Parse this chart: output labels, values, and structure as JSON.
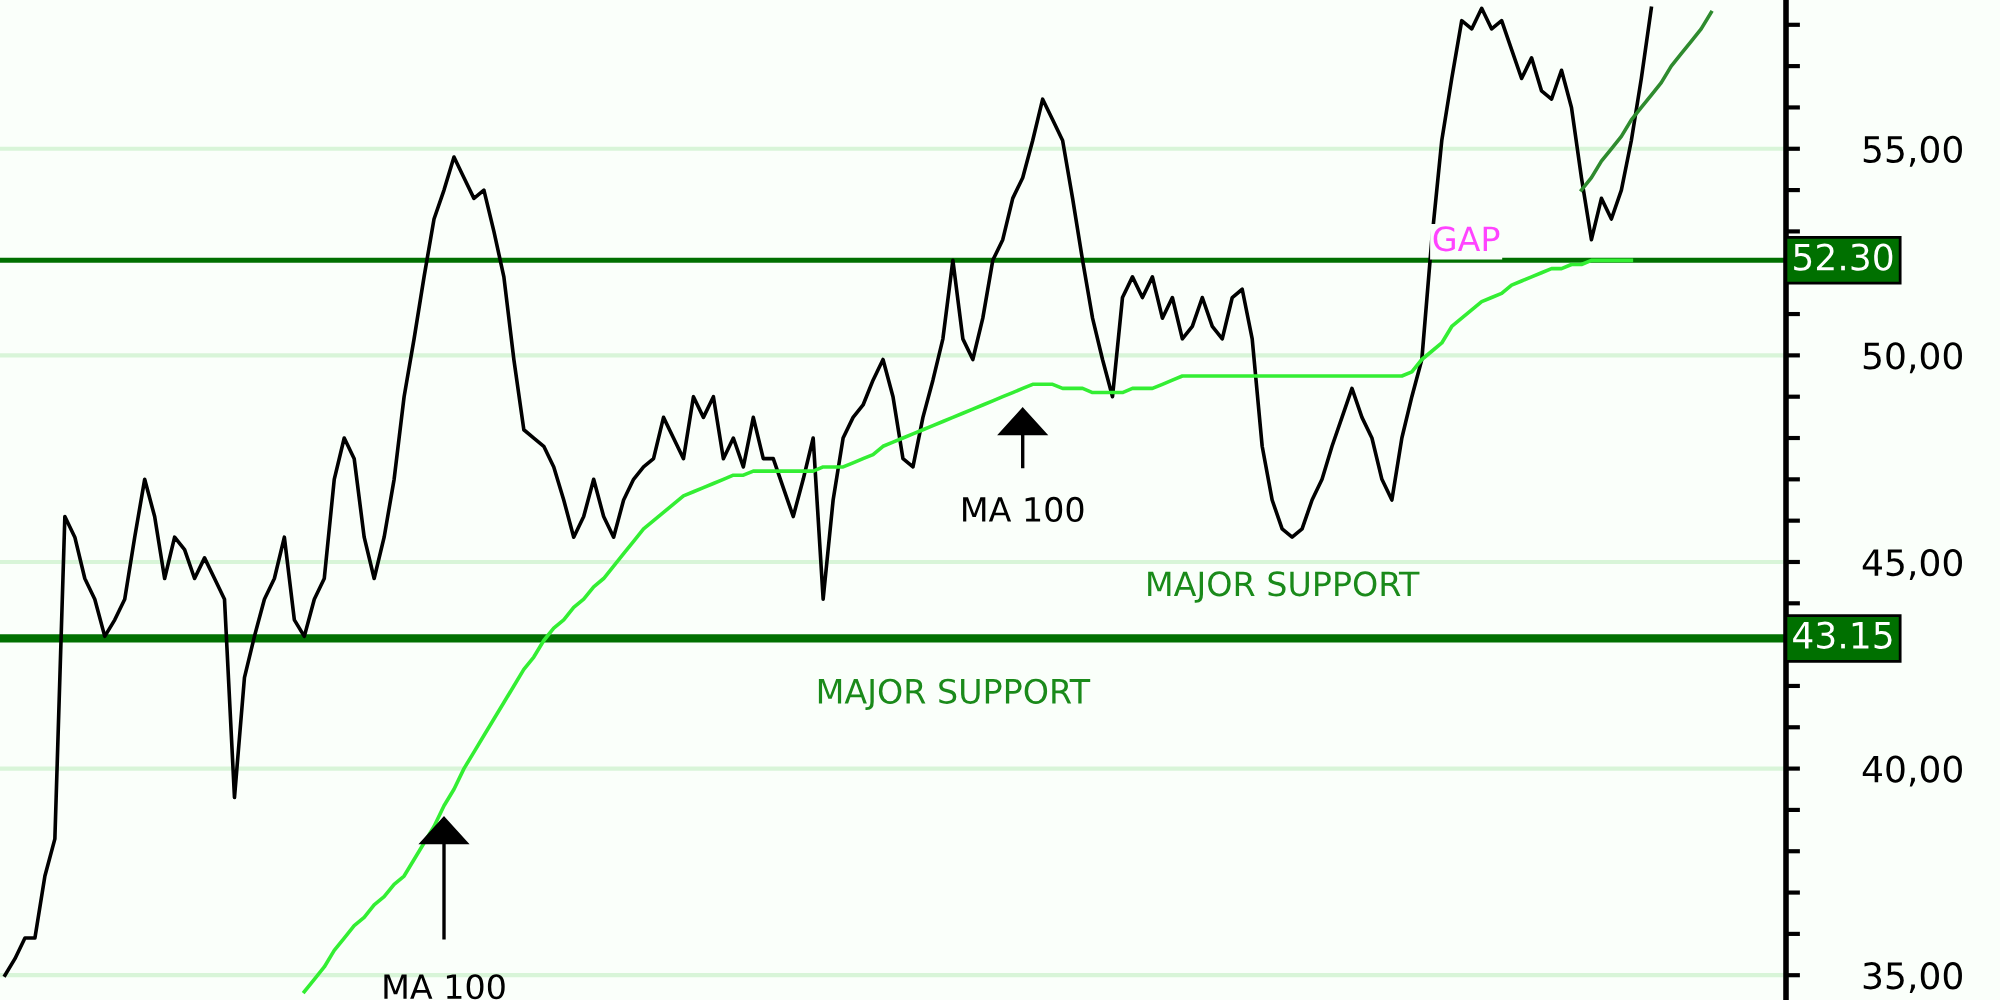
{
  "chart_data": {
    "type": "line",
    "categories": [
      null,
      null,
      null,
      null,
      null,
      null,
      null,
      null,
      null,
      null,
      null,
      null,
      null,
      null,
      null,
      null,
      null,
      null,
      null,
      null,
      null,
      null,
      null,
      null,
      null,
      null,
      null,
      null,
      null,
      null,
      null,
      null,
      null,
      null,
      null,
      null,
      null,
      null,
      null,
      null,
      null,
      null,
      null,
      null,
      null,
      null,
      null,
      null,
      null,
      null,
      null,
      null,
      null,
      null,
      null,
      null,
      null,
      null,
      null,
      null,
      null,
      null,
      null,
      null,
      null,
      null,
      null,
      null,
      null,
      null,
      null,
      null,
      null,
      null,
      null,
      null,
      null,
      null,
      null,
      null,
      null,
      null,
      null,
      null,
      null,
      null,
      null,
      null,
      null,
      null,
      null,
      null,
      null,
      null,
      null,
      null,
      null,
      null,
      null,
      null,
      null,
      null,
      null,
      null,
      null,
      null,
      null,
      null,
      null,
      null,
      null,
      null,
      null,
      null,
      null,
      null,
      null,
      null,
      null,
      null,
      null,
      null,
      null,
      null,
      null,
      null,
      null,
      null,
      null,
      null,
      null,
      null,
      null,
      null,
      null,
      null,
      null,
      null,
      null,
      null,
      null,
      null,
      null,
      null,
      null,
      null,
      null,
      null,
      null,
      null,
      null,
      null,
      null,
      null,
      null,
      null,
      null,
      null,
      null,
      null,
      null,
      null,
      null,
      null,
      null,
      null,
      null,
      null,
      null,
      null,
      null,
      null,
      null,
      null,
      null,
      null,
      null,
      null,
      null
    ],
    "series": [
      {
        "color": "#000000",
        "values": [
          35.0,
          35.4,
          35.9,
          35.9,
          37.4,
          38.3,
          46.1,
          45.6,
          44.6,
          44.1,
          43.2,
          43.6,
          44.1,
          45.6,
          47.0,
          46.1,
          44.6,
          45.6,
          45.3,
          44.6,
          45.1,
          44.6,
          44.1,
          39.3,
          42.2,
          43.2,
          44.1,
          44.6,
          45.6,
          43.6,
          43.2,
          44.1,
          44.6,
          47.0,
          48.0,
          47.5,
          45.6,
          44.6,
          45.6,
          47.0,
          49.0,
          50.4,
          51.9,
          53.3,
          54.0,
          54.8,
          54.3,
          53.8,
          54.0,
          53.0,
          51.9,
          49.9,
          48.2,
          48.0,
          47.8,
          47.3,
          46.5,
          45.6,
          46.1,
          47.0,
          46.1,
          45.6,
          46.5,
          47.0,
          47.3,
          47.5,
          48.5,
          48.0,
          47.5,
          49.0,
          48.5,
          49.0,
          47.5,
          48.0,
          47.3,
          48.5,
          47.5,
          47.5,
          46.8,
          46.1,
          47.0,
          48.0,
          44.1,
          46.5,
          48.0,
          48.5,
          48.8,
          49.4,
          49.9,
          49.0,
          47.5,
          47.3,
          48.5,
          49.4,
          50.4,
          52.3,
          50.4,
          49.9,
          50.9,
          52.3,
          52.8,
          53.8,
          54.3,
          55.2,
          56.2,
          55.7,
          55.2,
          53.8,
          52.3,
          50.9,
          49.9,
          49.0,
          51.4,
          51.9,
          51.4,
          51.9,
          50.9,
          51.4,
          50.4,
          50.7,
          51.4,
          50.7,
          50.4,
          51.4,
          51.6,
          50.4,
          47.8,
          46.5,
          45.8,
          45.6,
          45.8,
          46.5,
          47.0,
          47.8,
          48.5,
          49.2,
          48.5,
          48.0,
          47.0,
          46.5,
          48.0,
          49.0,
          49.9,
          52.8,
          55.2,
          56.7,
          58.1,
          57.9,
          58.4,
          57.9,
          58.1,
          57.4,
          56.7,
          57.2,
          56.4,
          56.2,
          56.9,
          56.0,
          54.3,
          52.8,
          53.8,
          53.3,
          54.0,
          55.2,
          56.7,
          58.4,
          null,
          null,
          null,
          null,
          null,
          null,
          null,
          null,
          null,
          null,
          null,
          null,
          null
        ]
      },
      {
        "color": "#33ee33",
        "values": [
          null,
          null,
          null,
          null,
          null,
          null,
          null,
          null,
          null,
          null,
          null,
          null,
          null,
          null,
          null,
          null,
          null,
          null,
          null,
          null,
          null,
          null,
          null,
          null,
          null,
          null,
          null,
          null,
          null,
          null,
          34.6,
          34.9,
          35.2,
          35.6,
          35.9,
          36.2,
          36.4,
          36.7,
          36.9,
          37.2,
          37.4,
          37.8,
          38.2,
          38.6,
          39.1,
          39.5,
          40.0,
          40.4,
          40.8,
          41.2,
          41.6,
          42.0,
          42.4,
          42.7,
          43.1,
          43.4,
          43.6,
          43.9,
          44.1,
          44.4,
          44.6,
          44.9,
          45.2,
          45.5,
          45.8,
          46.0,
          46.2,
          46.4,
          46.6,
          46.7,
          46.8,
          46.9,
          47.0,
          47.1,
          47.1,
          47.2,
          47.2,
          47.2,
          47.2,
          47.2,
          47.2,
          47.2,
          47.3,
          47.3,
          47.3,
          47.4,
          47.5,
          47.6,
          47.8,
          47.9,
          48.0,
          48.1,
          48.2,
          48.3,
          48.4,
          48.5,
          48.6,
          48.7,
          48.8,
          48.9,
          49.0,
          49.1,
          49.2,
          49.3,
          49.3,
          49.3,
          49.2,
          49.2,
          49.2,
          49.1,
          49.1,
          49.1,
          49.1,
          49.2,
          49.2,
          49.2,
          49.3,
          49.4,
          49.5,
          49.5,
          49.5,
          49.5,
          49.5,
          49.5,
          49.5,
          49.5,
          49.5,
          49.5,
          49.5,
          49.5,
          49.5,
          49.5,
          49.5,
          49.5,
          49.5,
          49.5,
          49.5,
          49.5,
          49.5,
          49.5,
          49.5,
          49.6,
          49.9,
          50.1,
          50.3,
          50.7,
          50.9,
          51.1,
          51.3,
          51.4,
          51.5,
          51.7,
          51.8,
          51.9,
          52.0,
          52.1,
          52.1,
          52.2,
          52.2,
          52.3,
          52.3,
          52.3,
          52.3,
          52.3,
          null,
          null,
          null,
          null,
          null,
          null,
          null,
          null,
          null,
          null,
          null,
          null,
          null,
          null,
          null
        ]
      },
      {
        "color": "#2e8b2e",
        "values": [
          null,
          null,
          null,
          null,
          null,
          null,
          null,
          null,
          null,
          null,
          null,
          null,
          null,
          null,
          null,
          null,
          null,
          null,
          null,
          null,
          null,
          null,
          null,
          null,
          null,
          null,
          null,
          null,
          null,
          null,
          null,
          null,
          null,
          null,
          null,
          null,
          null,
          null,
          null,
          null,
          null,
          null,
          null,
          null,
          null,
          null,
          null,
          null,
          null,
          null,
          null,
          null,
          null,
          null,
          null,
          null,
          null,
          null,
          null,
          null,
          null,
          null,
          null,
          null,
          null,
          null,
          null,
          null,
          null,
          null,
          null,
          null,
          null,
          null,
          null,
          null,
          null,
          null,
          null,
          null,
          null,
          null,
          null,
          null,
          null,
          null,
          null,
          null,
          null,
          null,
          null,
          null,
          null,
          null,
          null,
          null,
          null,
          null,
          null,
          null,
          null,
          null,
          null,
          null,
          null,
          null,
          null,
          null,
          null,
          null,
          null,
          null,
          null,
          null,
          null,
          null,
          null,
          null,
          null,
          null,
          null,
          null,
          null,
          null,
          null,
          null,
          null,
          null,
          null,
          null,
          null,
          null,
          null,
          null,
          null,
          null,
          null,
          null,
          null,
          null,
          null,
          null,
          null,
          null,
          null,
          null,
          null,
          null,
          null,
          null,
          null,
          null,
          null,
          null,
          null,
          null,
          null,
          null,
          54.0,
          54.3,
          54.7,
          55.0,
          55.3,
          55.7,
          56.0,
          56.3,
          56.6,
          57.0,
          57.3,
          57.6,
          57.9,
          58.3,
          null,
          null,
          null,
          null,
          null,
          null,
          null
        ]
      }
    ],
    "ylim": [
      34.4,
      58.6
    ],
    "yticks": [
      {
        "value": 35,
        "label": "35,00"
      },
      {
        "value": 36,
        "label": null
      },
      {
        "value": 37,
        "label": null
      },
      {
        "value": 38,
        "label": null
      },
      {
        "value": 39,
        "label": null
      },
      {
        "value": 40,
        "label": "40,00"
      },
      {
        "value": 41,
        "label": null
      },
      {
        "value": 42,
        "label": null
      },
      {
        "value": 43,
        "label": null
      },
      {
        "value": 44,
        "label": null
      },
      {
        "value": 45,
        "label": "45,00"
      },
      {
        "value": 46,
        "label": null
      },
      {
        "value": 47,
        "label": null
      },
      {
        "value": 48,
        "label": null
      },
      {
        "value": 49,
        "label": null
      },
      {
        "value": 50,
        "label": "50,00"
      },
      {
        "value": 51,
        "label": null
      },
      {
        "value": 52,
        "label": null
      },
      {
        "value": 53,
        "label": null
      },
      {
        "value": 54,
        "label": null
      },
      {
        "value": 55,
        "label": "55,00"
      },
      {
        "value": 56,
        "label": null
      },
      {
        "value": 57,
        "label": null
      },
      {
        "value": 58,
        "label": null
      }
    ],
    "grid": "y",
    "tick_labels": "y",
    "ref_lines": [
      {
        "axis": "y",
        "value": 43.15,
        "label": "43.15",
        "color": "#007000"
      },
      {
        "axis": "y",
        "value": 52.3,
        "label": "52.30",
        "color": "#007000"
      }
    ],
    "annotations": [
      "MA 100",
      "MA 100",
      "MAJOR SUPPORT",
      "MAJOR SUPPORT",
      "GAP"
    ]
  }
}
